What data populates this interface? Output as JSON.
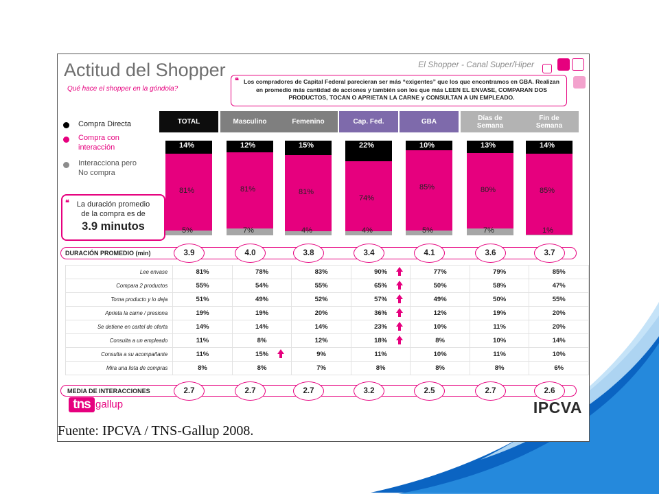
{
  "slide": {
    "title": "Actitud del Shopper",
    "subtitle": "Qué hace el shopper en la góndola?",
    "top_right": "El Shopper - Canal Super/Hiper",
    "callout": "Los compradores de Capital Federal parecieran ser más “exigentes” que los que encontramos en GBA. Realizan en promedio más cantidad de acciones y también son los que más LEEN EL ENVASE, COMPARAN DOS PRODUCTOS, TOCAN O APRIETAN LA CARNE y CONSULTAN A UN EMPLEADO.",
    "duration_box": {
      "line1": "La duración promedio",
      "line2": "de la compra es de",
      "value": "3.9 minutos"
    },
    "duration_label": "DURACIÓN PROMEDIO (min)",
    "interactions_label": "MEDIA DE INTERACCIONES",
    "logo_tns": "tns",
    "logo_gallup": "gallup",
    "logo_ipcva": "IPCVA"
  },
  "source": "Fuente: IPCVA / TNS-Gallup 2008.",
  "colors": {
    "magenta": "#e6007e",
    "black": "#000000",
    "gray": "#a6a6a6",
    "header_black": "#0d0d0d",
    "header_gray": "#7f7f7f",
    "header_purple": "#7e6aab",
    "header_lightgray": "#b3b3b3"
  },
  "legend": [
    {
      "label": "Compra Directa",
      "color": "#000000"
    },
    {
      "label": "Compra con interacción",
      "color": "#e6007e"
    },
    {
      "label": "Interacciona pero No compra",
      "color": "#8c8c8c"
    }
  ],
  "chart_data": {
    "type": "bar",
    "stacked": true,
    "categories": [
      "TOTAL",
      "Masculino",
      "Femenino",
      "Cap. Fed.",
      "GBA",
      "Días de Semana",
      "Fin de Semana"
    ],
    "header_colors": [
      "#0d0d0d",
      "#7f7f7f",
      "#7f7f7f",
      "#7e6aab",
      "#7e6aab",
      "#b3b3b3",
      "#b3b3b3"
    ],
    "series": [
      {
        "name": "Compra Directa",
        "values": [
          14,
          12,
          15,
          22,
          10,
          13,
          14
        ],
        "labels": [
          "14%",
          "12%",
          "15%",
          "22%",
          "10%",
          "13%",
          "14%"
        ]
      },
      {
        "name": "Compra con interacción",
        "values": [
          81,
          81,
          81,
          74,
          85,
          80,
          85
        ],
        "labels": [
          "81%",
          "81%",
          "81%",
          "74%",
          "85%",
          "80%",
          "85%"
        ]
      },
      {
        "name": "Interacciona pero No compra",
        "values": [
          5,
          7,
          4,
          4,
          5,
          7,
          1
        ],
        "labels": [
          "5%",
          "7%",
          "4%",
          "4%",
          "5%",
          "7%",
          "1%"
        ]
      }
    ],
    "duration": [
      "3.9",
      "4.0",
      "3.8",
      "3.4",
      "4.1",
      "3.6",
      "3.7"
    ],
    "interactions_mean": [
      "2.7",
      "2.7",
      "2.7",
      "3.2",
      "2.5",
      "2.7",
      "2.6"
    ],
    "table": {
      "rows": [
        {
          "label": "Lee envase",
          "values": [
            "81%",
            "78%",
            "83%",
            "90%",
            "77%",
            "79%",
            "85%"
          ],
          "arrows": [
            3
          ]
        },
        {
          "label": "Compara 2 productos",
          "values": [
            "55%",
            "54%",
            "55%",
            "65%",
            "50%",
            "58%",
            "47%"
          ],
          "arrows": [
            3
          ]
        },
        {
          "label": "Toma producto y lo deja",
          "values": [
            "51%",
            "49%",
            "52%",
            "57%",
            "49%",
            "50%",
            "55%"
          ],
          "arrows": [
            3
          ]
        },
        {
          "label": "Aprieta la carne / presiona",
          "values": [
            "19%",
            "19%",
            "20%",
            "36%",
            "12%",
            "19%",
            "20%"
          ],
          "arrows": [
            3
          ]
        },
        {
          "label": "Se detiene en cartel de oferta",
          "values": [
            "14%",
            "14%",
            "14%",
            "23%",
            "10%",
            "11%",
            "20%"
          ],
          "arrows": [
            3
          ]
        },
        {
          "label": "Consulta a un empleado",
          "values": [
            "11%",
            "8%",
            "12%",
            "18%",
            "8%",
            "10%",
            "14%"
          ],
          "arrows": [
            3
          ]
        },
        {
          "label": "Consulta a su acompañante",
          "values": [
            "11%",
            "15%",
            "9%",
            "11%",
            "10%",
            "11%",
            "10%"
          ],
          "arrows": [
            1
          ]
        },
        {
          "label": "Mira una lista de compras",
          "values": [
            "8%",
            "8%",
            "7%",
            "8%",
            "8%",
            "8%",
            "6%"
          ],
          "arrows": []
        }
      ]
    }
  }
}
